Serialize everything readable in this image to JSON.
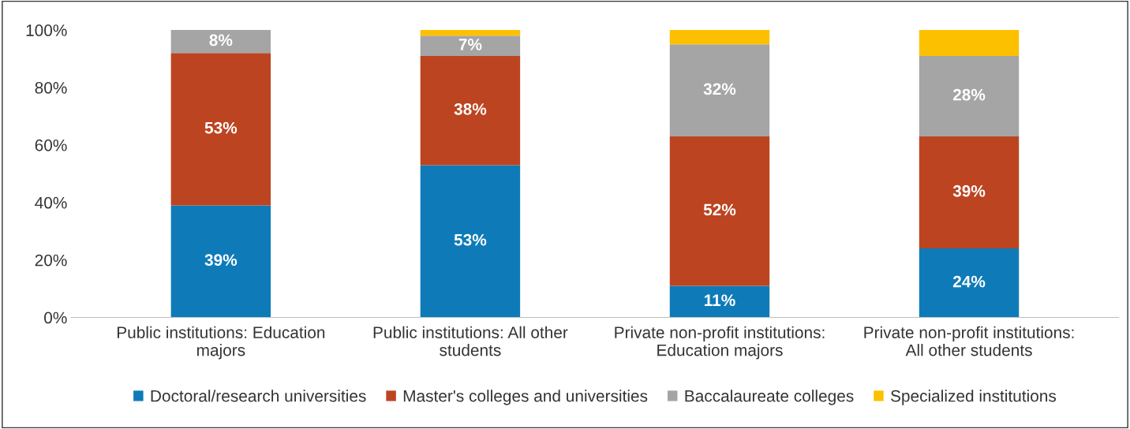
{
  "chart_data": {
    "type": "bar",
    "stacked": true,
    "categories": [
      "Public institutions: Education\nmajors",
      "Public institutions: All other\nstudents",
      "Private non-profit institutions:\nEducation majors",
      "Private non-profit institutions:\nAll other students"
    ],
    "series": [
      {
        "name": "Doctoral/research universities",
        "color": "#0e7bb8",
        "values": [
          39,
          53,
          11,
          24
        ],
        "value_labels": [
          "39%",
          "53%",
          "11%",
          "24%"
        ]
      },
      {
        "name": "Master's colleges and universities",
        "color": "#bc4420",
        "values": [
          53,
          38,
          52,
          39
        ],
        "value_labels": [
          "53%",
          "38%",
          "52%",
          "39%"
        ]
      },
      {
        "name": "Baccalaureate colleges",
        "color": "#a5a5a5",
        "values": [
          8,
          7,
          32,
          28
        ],
        "value_labels": [
          "8%",
          "7%",
          "32%",
          "28%"
        ]
      },
      {
        "name": "Specialized institutions",
        "color": "#fcc000",
        "values": [
          null,
          2,
          5,
          9
        ],
        "value_labels": [
          null,
          null,
          null,
          null
        ]
      }
    ],
    "ylim": [
      0,
      100
    ],
    "yticks": [
      {
        "value": 0,
        "label": "0%"
      },
      {
        "value": 20,
        "label": "20%"
      },
      {
        "value": 40,
        "label": "40%"
      },
      {
        "value": 60,
        "label": "60%"
      },
      {
        "value": 80,
        "label": "80%"
      },
      {
        "value": 100,
        "label": "100%"
      }
    ],
    "grid": false,
    "legend": "bottom"
  }
}
